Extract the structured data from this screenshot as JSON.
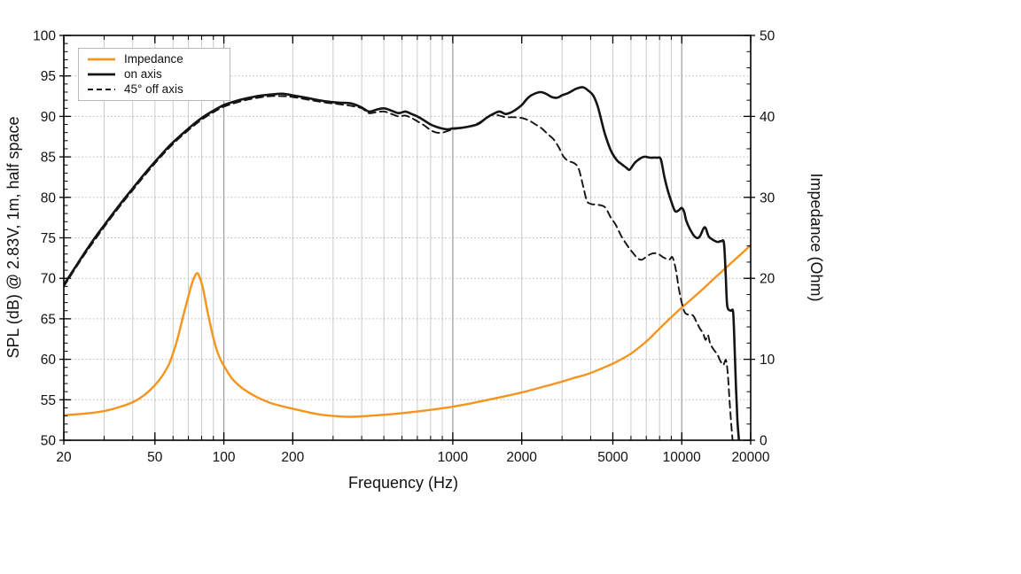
{
  "figure": {
    "background": "#ffffff",
    "frame_color": "#000000",
    "grid_minor_color": "#cccccc",
    "grid_decade_color": "#9b9b9b",
    "grid_horizontal_color": "#b3b3b3"
  },
  "chart_data": {
    "type": "line",
    "title": "",
    "xlabel": "Frequency (Hz)",
    "ylabel_left": "SPL (dB) @ 2.83V, 1m, half space",
    "ylabel_right": "Impedance (Ohm)",
    "x_scale": "log",
    "xlim": [
      20,
      20000
    ],
    "ylim_left": [
      50,
      100
    ],
    "ylim_right": [
      0,
      50
    ],
    "grid": "on",
    "legend_position": "top-left",
    "x_ticks": [
      20,
      50,
      100,
      200,
      1000,
      2000,
      5000,
      10000,
      20000
    ],
    "x_decade_gridlines": [
      100,
      1000,
      10000
    ],
    "y_ticks_left": [
      50,
      55,
      60,
      65,
      70,
      75,
      80,
      85,
      90,
      95,
      100
    ],
    "y_ticks_right": [
      0,
      10,
      20,
      30,
      40,
      50
    ],
    "y_minor_step_left": 1,
    "y_minor_step_right": 2,
    "series": [
      {
        "name": "Impedance",
        "axis": "right",
        "color": "#F7941D",
        "style": "solid",
        "width": 2.4,
        "z": 1,
        "points": [
          [
            20,
            3.1
          ],
          [
            25,
            3.3
          ],
          [
            30,
            3.6
          ],
          [
            35,
            4.1
          ],
          [
            40,
            4.7
          ],
          [
            45,
            5.6
          ],
          [
            50,
            6.8
          ],
          [
            54,
            8.0
          ],
          [
            58,
            9.6
          ],
          [
            62,
            12.0
          ],
          [
            66,
            15.0
          ],
          [
            70,
            17.8
          ],
          [
            73,
            19.6
          ],
          [
            76,
            20.6
          ],
          [
            78,
            20.3
          ],
          [
            81,
            18.8
          ],
          [
            85,
            15.8
          ],
          [
            89,
            13.2
          ],
          [
            93,
            11.2
          ],
          [
            97,
            9.9
          ],
          [
            101,
            9.0
          ],
          [
            108,
            7.7
          ],
          [
            116,
            6.8
          ],
          [
            125,
            6.1
          ],
          [
            140,
            5.3
          ],
          [
            160,
            4.6
          ],
          [
            180,
            4.2
          ],
          [
            200,
            3.9
          ],
          [
            230,
            3.5
          ],
          [
            260,
            3.2
          ],
          [
            300,
            3.0
          ],
          [
            350,
            2.9
          ],
          [
            400,
            2.95
          ],
          [
            450,
            3.05
          ],
          [
            500,
            3.15
          ],
          [
            600,
            3.35
          ],
          [
            700,
            3.55
          ],
          [
            800,
            3.75
          ],
          [
            900,
            3.95
          ],
          [
            1000,
            4.15
          ],
          [
            1200,
            4.55
          ],
          [
            1400,
            4.95
          ],
          [
            1700,
            5.45
          ],
          [
            2000,
            5.9
          ],
          [
            2400,
            6.5
          ],
          [
            2800,
            7.0
          ],
          [
            3300,
            7.6
          ],
          [
            3900,
            8.2
          ],
          [
            4500,
            8.9
          ],
          [
            5200,
            9.7
          ],
          [
            6000,
            10.7
          ],
          [
            7000,
            12.2
          ],
          [
            8000,
            13.8
          ],
          [
            9000,
            15.2
          ],
          [
            10000,
            16.4
          ],
          [
            11000,
            17.4
          ],
          [
            12500,
            18.8
          ],
          [
            14000,
            20.1
          ],
          [
            16000,
            21.6
          ],
          [
            18000,
            22.9
          ],
          [
            20000,
            24.1
          ]
        ]
      },
      {
        "name": "on axis",
        "axis": "left",
        "color": "#141414",
        "style": "solid",
        "width": 2.6,
        "z": 3,
        "points": [
          [
            20,
            69.2
          ],
          [
            22,
            71.0
          ],
          [
            25,
            73.4
          ],
          [
            28,
            75.4
          ],
          [
            32,
            77.6
          ],
          [
            36,
            79.5
          ],
          [
            40,
            81.1
          ],
          [
            45,
            82.9
          ],
          [
            50,
            84.4
          ],
          [
            55,
            85.7
          ],
          [
            60,
            86.8
          ],
          [
            70,
            88.5
          ],
          [
            80,
            89.8
          ],
          [
            90,
            90.7
          ],
          [
            100,
            91.4
          ],
          [
            110,
            91.8
          ],
          [
            120,
            92.1
          ],
          [
            140,
            92.5
          ],
          [
            160,
            92.7
          ],
          [
            180,
            92.8
          ],
          [
            200,
            92.6
          ],
          [
            230,
            92.3
          ],
          [
            260,
            92.0
          ],
          [
            290,
            91.8
          ],
          [
            320,
            91.7
          ],
          [
            360,
            91.6
          ],
          [
            400,
            91.1
          ],
          [
            430,
            90.6
          ],
          [
            460,
            90.8
          ],
          [
            500,
            91.0
          ],
          [
            540,
            90.7
          ],
          [
            580,
            90.4
          ],
          [
            620,
            90.6
          ],
          [
            660,
            90.3
          ],
          [
            700,
            90.0
          ],
          [
            750,
            89.5
          ],
          [
            800,
            89.0
          ],
          [
            850,
            88.7
          ],
          [
            900,
            88.5
          ],
          [
            950,
            88.4
          ],
          [
            1000,
            88.5
          ],
          [
            1100,
            88.6
          ],
          [
            1200,
            88.8
          ],
          [
            1300,
            89.1
          ],
          [
            1400,
            89.8
          ],
          [
            1500,
            90.3
          ],
          [
            1600,
            90.6
          ],
          [
            1700,
            90.3
          ],
          [
            1800,
            90.5
          ],
          [
            1900,
            90.9
          ],
          [
            2000,
            91.4
          ],
          [
            2100,
            92.1
          ],
          [
            2200,
            92.6
          ],
          [
            2400,
            93.0
          ],
          [
            2550,
            92.8
          ],
          [
            2700,
            92.4
          ],
          [
            2850,
            92.3
          ],
          [
            3000,
            92.6
          ],
          [
            3200,
            92.9
          ],
          [
            3450,
            93.4
          ],
          [
            3700,
            93.6
          ],
          [
            3900,
            93.2
          ],
          [
            4100,
            92.6
          ],
          [
            4300,
            91.2
          ],
          [
            4600,
            88.0
          ],
          [
            4900,
            85.8
          ],
          [
            5200,
            84.6
          ],
          [
            5400,
            84.2
          ],
          [
            5700,
            83.7
          ],
          [
            5900,
            83.4
          ],
          [
            6100,
            83.9
          ],
          [
            6300,
            84.4
          ],
          [
            6800,
            85.0
          ],
          [
            7300,
            84.9
          ],
          [
            7800,
            84.9
          ],
          [
            8100,
            84.7
          ],
          [
            8400,
            82.5
          ],
          [
            8700,
            80.8
          ],
          [
            9000,
            79.5
          ],
          [
            9350,
            78.3
          ],
          [
            9700,
            78.4
          ],
          [
            10000,
            78.7
          ],
          [
            10250,
            78.2
          ],
          [
            10500,
            77.0
          ],
          [
            11100,
            75.6
          ],
          [
            11600,
            75.0
          ],
          [
            12000,
            75.2
          ],
          [
            12600,
            76.3
          ],
          [
            13100,
            75.2
          ],
          [
            13600,
            74.8
          ],
          [
            14300,
            74.5
          ],
          [
            14900,
            74.6
          ],
          [
            15300,
            74.3
          ],
          [
            15550,
            70.5
          ],
          [
            15750,
            67.0
          ],
          [
            15950,
            66.2
          ],
          [
            16400,
            66.0
          ],
          [
            16750,
            65.9
          ],
          [
            16950,
            63.0
          ],
          [
            17200,
            57.5
          ],
          [
            17500,
            52.5
          ],
          [
            17800,
            49.8
          ]
        ]
      },
      {
        "name": "45° off axis",
        "axis": "left",
        "color": "#141414",
        "style": "dashed",
        "width": 1.9,
        "z": 2,
        "points": [
          [
            20,
            69.0
          ],
          [
            25,
            73.2
          ],
          [
            32,
            77.4
          ],
          [
            40,
            80.9
          ],
          [
            50,
            84.2
          ],
          [
            60,
            86.6
          ],
          [
            70,
            88.3
          ],
          [
            80,
            89.6
          ],
          [
            90,
            90.5
          ],
          [
            100,
            91.2
          ],
          [
            120,
            91.9
          ],
          [
            140,
            92.3
          ],
          [
            160,
            92.5
          ],
          [
            180,
            92.5
          ],
          [
            200,
            92.4
          ],
          [
            240,
            92.0
          ],
          [
            280,
            91.7
          ],
          [
            320,
            91.5
          ],
          [
            360,
            91.3
          ],
          [
            400,
            91.0
          ],
          [
            430,
            90.4
          ],
          [
            460,
            90.5
          ],
          [
            500,
            90.6
          ],
          [
            540,
            90.3
          ],
          [
            580,
            90.0
          ],
          [
            620,
            90.1
          ],
          [
            660,
            89.8
          ],
          [
            700,
            89.4
          ],
          [
            750,
            88.9
          ],
          [
            800,
            88.3
          ],
          [
            850,
            88.0
          ],
          [
            900,
            88.0
          ],
          [
            950,
            88.2
          ],
          [
            1000,
            88.4
          ],
          [
            1100,
            88.6
          ],
          [
            1200,
            88.8
          ],
          [
            1300,
            89.2
          ],
          [
            1400,
            89.8
          ],
          [
            1500,
            90.2
          ],
          [
            1600,
            90.1
          ],
          [
            1700,
            89.9
          ],
          [
            1850,
            89.9
          ],
          [
            2000,
            89.8
          ],
          [
            2150,
            89.5
          ],
          [
            2300,
            89.0
          ],
          [
            2450,
            88.5
          ],
          [
            2600,
            87.8
          ],
          [
            2750,
            87.2
          ],
          [
            2900,
            86.2
          ],
          [
            3050,
            85.0
          ],
          [
            3200,
            84.5
          ],
          [
            3400,
            84.2
          ],
          [
            3550,
            83.5
          ],
          [
            3700,
            81.5
          ],
          [
            3850,
            79.6
          ],
          [
            4000,
            79.2
          ],
          [
            4200,
            79.1
          ],
          [
            4450,
            79.0
          ],
          [
            4650,
            78.7
          ],
          [
            4900,
            77.5
          ],
          [
            5150,
            76.6
          ],
          [
            5450,
            75.2
          ],
          [
            5800,
            74.0
          ],
          [
            6100,
            73.2
          ],
          [
            6400,
            72.5
          ],
          [
            6700,
            72.3
          ],
          [
            7100,
            72.8
          ],
          [
            7500,
            73.1
          ],
          [
            7900,
            73.0
          ],
          [
            8300,
            72.6
          ],
          [
            8800,
            72.3
          ],
          [
            9100,
            72.6
          ],
          [
            9400,
            71.2
          ],
          [
            9700,
            68.8
          ],
          [
            10000,
            67.0
          ],
          [
            10300,
            65.8
          ],
          [
            10700,
            65.5
          ],
          [
            11200,
            65.4
          ],
          [
            11600,
            64.6
          ],
          [
            12000,
            63.8
          ],
          [
            12400,
            63.2
          ],
          [
            12700,
            62.4
          ],
          [
            13000,
            63.0
          ],
          [
            13300,
            62.0
          ],
          [
            13700,
            61.3
          ],
          [
            14300,
            60.6
          ],
          [
            14800,
            59.7
          ],
          [
            15200,
            59.3
          ],
          [
            15600,
            59.9
          ],
          [
            15900,
            58.0
          ],
          [
            16200,
            54.5
          ],
          [
            16500,
            51.5
          ],
          [
            16700,
            49.8
          ]
        ]
      }
    ]
  }
}
